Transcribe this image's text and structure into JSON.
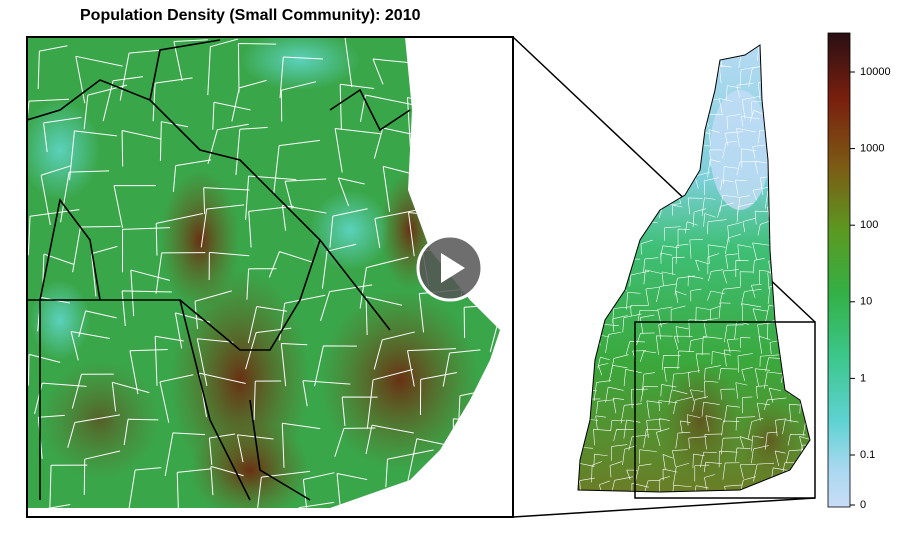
{
  "title": "Population Density (Small Community): 2010",
  "legend": {
    "ticks": [
      0,
      0.1,
      1,
      10,
      100,
      1000,
      10000
    ]
  }
}
